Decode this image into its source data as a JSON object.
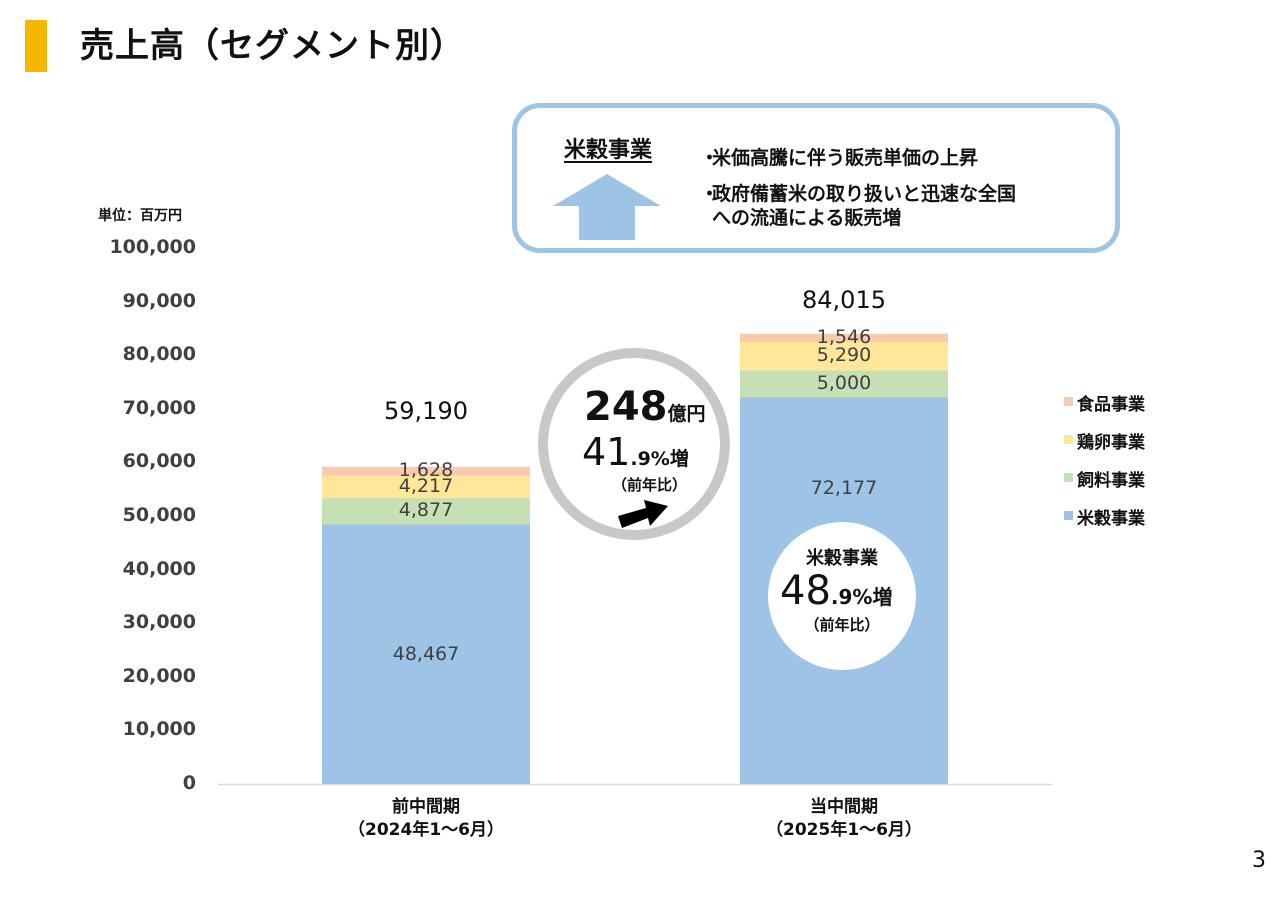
{
  "page": {
    "title": "売上高（セグメント別）",
    "unit_label": "単位：百万円",
    "page_number": "3"
  },
  "callout": {
    "heading": "米穀事業",
    "bullet_mark": "・",
    "bullets": [
      "米価高騰に伴う販売単価の上昇",
      "政府備蓄米の取り扱いと迅速な全国",
      "への流通による販売増"
    ],
    "arrow_icon": "up-arrow-icon"
  },
  "growth_badge": {
    "amount": "248",
    "amount_unit": "億円",
    "rate_int": "41",
    "rate_dec": ".9%増",
    "note": "（前年比）",
    "arrow_icon": "right-arrow-icon"
  },
  "rice_badge": {
    "heading": "米穀事業",
    "rate_int": "48",
    "rate_dec": ".9%増",
    "note": "（前年比）"
  },
  "colors": {
    "title_accent": "#F5B800",
    "callout_border": "#9DC3E6",
    "rice": "#9DC3E6",
    "feed": "#C5E0B4",
    "egg": "#FFE699",
    "food": "#F8CBAD"
  },
  "chart_data": {
    "type": "bar",
    "stacked": true,
    "categories": [
      {
        "line1": "前中間期",
        "line2": "（2024年1～6月）"
      },
      {
        "line1": "当中間期",
        "line2": "（2025年1～6月）"
      }
    ],
    "series": [
      {
        "name": "米穀事業",
        "color": "#9DC3E6",
        "values": [
          48467,
          72177
        ],
        "labels": [
          "48,467",
          "72,177"
        ]
      },
      {
        "name": "飼料事業",
        "color": "#C5E0B4",
        "values": [
          4877,
          5000
        ],
        "labels": [
          "4,877",
          "5,000"
        ]
      },
      {
        "name": "鶏卵事業",
        "color": "#FFE699",
        "values": [
          4217,
          5290
        ],
        "labels": [
          "4,217",
          "5,290"
        ]
      },
      {
        "name": "食品事業",
        "color": "#F8CBAD",
        "values": [
          1628,
          1546
        ],
        "labels": [
          "1,628",
          "1,546"
        ]
      }
    ],
    "totals": [
      "59,190",
      "84,015"
    ],
    "ylim": [
      0,
      100000
    ],
    "yticks": [
      "0",
      "10,000",
      "20,000",
      "30,000",
      "40,000",
      "50,000",
      "60,000",
      "70,000",
      "80,000",
      "90,000",
      "100,000"
    ],
    "legend_order": [
      "食品事業",
      "鶏卵事業",
      "飼料事業",
      "米穀事業"
    ],
    "legend_position": "right",
    "grid": false
  }
}
